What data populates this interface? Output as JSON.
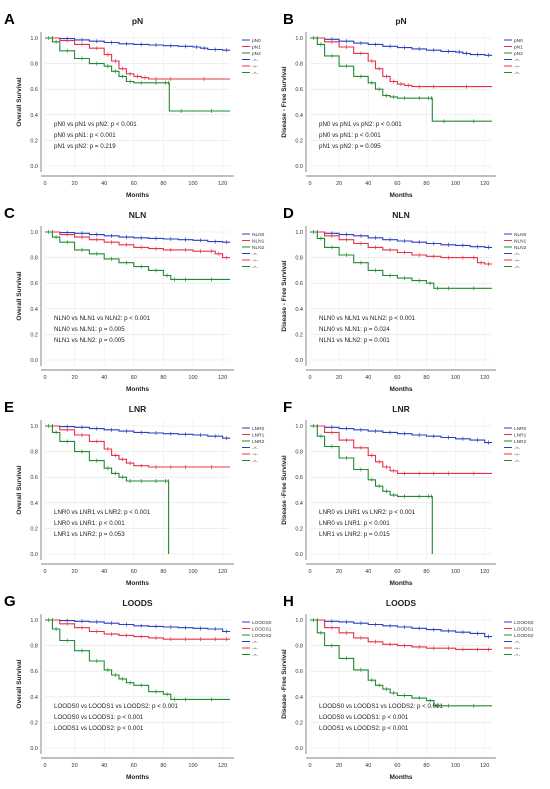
{
  "figure": {
    "xlabel": "Months",
    "x_ticks": [
      0,
      20,
      40,
      60,
      80,
      100,
      120
    ],
    "y_ticks": [
      "0.0",
      "0.2",
      "0.4",
      "0.6",
      "0.8",
      "1.0"
    ],
    "colors": [
      "#2b3fbf",
      "#e8304a",
      "#1e8c2e"
    ]
  },
  "chart_data": [
    {
      "panel": "A",
      "type": "line",
      "title": "pN",
      "ylabel": "Overall Survival",
      "xlim": [
        0,
        125
      ],
      "ylim": [
        0,
        1.0
      ],
      "legend": [
        "pN0",
        "pN1",
        "pN2",
        "-+-",
        "-+-",
        "-+-"
      ],
      "annotations": [
        "pN0 vs pN1 vs pN2: p < 0.001",
        "pN0 vs pN1: p < 0.001",
        "pN1 vs pN2: p = 0.219"
      ],
      "series": [
        {
          "x": [
            0,
            10,
            20,
            30,
            40,
            50,
            60,
            70,
            80,
            90,
            100,
            105,
            110,
            120,
            125
          ],
          "y": [
            1.0,
            0.995,
            0.985,
            0.975,
            0.965,
            0.955,
            0.95,
            0.945,
            0.94,
            0.935,
            0.93,
            0.92,
            0.91,
            0.905,
            0.905
          ]
        },
        {
          "x": [
            0,
            10,
            20,
            30,
            40,
            45,
            50,
            55,
            60,
            65,
            70,
            80,
            90,
            125
          ],
          "y": [
            1.0,
            0.98,
            0.95,
            0.92,
            0.87,
            0.82,
            0.76,
            0.72,
            0.7,
            0.69,
            0.68,
            0.68,
            0.68,
            0.68
          ]
        },
        {
          "x": [
            0,
            5,
            10,
            20,
            30,
            40,
            45,
            50,
            55,
            60,
            70,
            80,
            83,
            84,
            100,
            125
          ],
          "y": [
            1.0,
            0.97,
            0.9,
            0.84,
            0.8,
            0.78,
            0.74,
            0.7,
            0.66,
            0.65,
            0.65,
            0.65,
            0.65,
            0.43,
            0.43,
            0.43
          ]
        }
      ]
    },
    {
      "panel": "B",
      "type": "line",
      "title": "pN",
      "ylabel": "Disease - Free Survival",
      "xlim": [
        0,
        125
      ],
      "ylim": [
        0,
        1.0
      ],
      "legend": [
        "pN0",
        "pN1",
        "pN2",
        "-+-",
        "-+-",
        "-+-"
      ],
      "annotations": [
        "pN0 vs pN1 vs pN2: p < 0.001",
        "pN0 vs pN1: p < 0.001",
        "pN1 vs pN2: p = 0.095"
      ],
      "series": [
        {
          "x": [
            0,
            10,
            20,
            30,
            40,
            50,
            60,
            70,
            80,
            90,
            100,
            105,
            110,
            120,
            125
          ],
          "y": [
            1.0,
            0.99,
            0.975,
            0.96,
            0.95,
            0.935,
            0.925,
            0.915,
            0.905,
            0.895,
            0.89,
            0.88,
            0.87,
            0.865,
            0.865
          ]
        },
        {
          "x": [
            0,
            10,
            20,
            30,
            40,
            45,
            50,
            55,
            60,
            65,
            70,
            80,
            90,
            125
          ],
          "y": [
            1.0,
            0.97,
            0.93,
            0.88,
            0.82,
            0.76,
            0.7,
            0.66,
            0.64,
            0.63,
            0.62,
            0.62,
            0.62,
            0.62
          ]
        },
        {
          "x": [
            0,
            5,
            10,
            20,
            30,
            40,
            45,
            50,
            55,
            60,
            70,
            80,
            83,
            84,
            100,
            125
          ],
          "y": [
            1.0,
            0.95,
            0.86,
            0.78,
            0.7,
            0.65,
            0.6,
            0.55,
            0.54,
            0.53,
            0.53,
            0.53,
            0.53,
            0.35,
            0.35,
            0.35
          ]
        }
      ]
    },
    {
      "panel": "C",
      "type": "line",
      "title": "NLN",
      "ylabel": "Overall Survival",
      "xlim": [
        0,
        125
      ],
      "ylim": [
        0,
        1.0
      ],
      "legend": [
        "NLN0",
        "NLN1",
        "NLN2",
        "-+-",
        "-+-",
        "-+-"
      ],
      "annotations": [
        "NLN0 vs NLN1 vs NLN2: p < 0.001",
        "NLN0 vs NLN1: p = 0.005",
        "NLN1 vs NLN2: p = 0.005"
      ],
      "series": [
        {
          "x": [
            0,
            10,
            20,
            30,
            40,
            50,
            60,
            70,
            80,
            90,
            100,
            110,
            120,
            125
          ],
          "y": [
            1.0,
            0.995,
            0.99,
            0.98,
            0.97,
            0.96,
            0.955,
            0.95,
            0.945,
            0.94,
            0.935,
            0.925,
            0.92,
            0.92
          ]
        },
        {
          "x": [
            0,
            10,
            20,
            30,
            40,
            50,
            60,
            70,
            80,
            90,
            100,
            110,
            115,
            120,
            125
          ],
          "y": [
            1.0,
            0.98,
            0.96,
            0.94,
            0.92,
            0.9,
            0.88,
            0.87,
            0.86,
            0.86,
            0.85,
            0.85,
            0.83,
            0.8,
            0.8
          ]
        },
        {
          "x": [
            0,
            5,
            10,
            20,
            30,
            40,
            50,
            60,
            70,
            80,
            85,
            90,
            100,
            125
          ],
          "y": [
            1.0,
            0.96,
            0.92,
            0.86,
            0.83,
            0.79,
            0.76,
            0.73,
            0.7,
            0.66,
            0.63,
            0.63,
            0.63,
            0.63
          ]
        }
      ]
    },
    {
      "panel": "D",
      "type": "line",
      "title": "NLN",
      "ylabel": "Disease - Free Survival",
      "xlim": [
        0,
        125
      ],
      "ylim": [
        0,
        1.0
      ],
      "legend": [
        "NLN0",
        "NLN1",
        "NLN2",
        "-+-",
        "-+-",
        "-+-"
      ],
      "annotations": [
        "NLN0 vs NLN1 vs NLN2: p < 0.001",
        "NLN0 vs NLN1: p = 0.024",
        "NLN1 vs NLN2: p = 0.001"
      ],
      "series": [
        {
          "x": [
            0,
            10,
            20,
            30,
            40,
            50,
            60,
            70,
            80,
            90,
            100,
            110,
            120,
            125
          ],
          "y": [
            1.0,
            0.99,
            0.98,
            0.97,
            0.955,
            0.94,
            0.93,
            0.92,
            0.91,
            0.9,
            0.895,
            0.885,
            0.88,
            0.88
          ]
        },
        {
          "x": [
            0,
            10,
            20,
            30,
            40,
            50,
            60,
            70,
            80,
            90,
            100,
            110,
            115,
            120,
            125
          ],
          "y": [
            1.0,
            0.97,
            0.94,
            0.91,
            0.88,
            0.86,
            0.84,
            0.82,
            0.81,
            0.8,
            0.8,
            0.8,
            0.76,
            0.75,
            0.75
          ]
        },
        {
          "x": [
            0,
            5,
            10,
            20,
            30,
            40,
            50,
            60,
            70,
            80,
            85,
            90,
            100,
            125
          ],
          "y": [
            1.0,
            0.95,
            0.88,
            0.82,
            0.76,
            0.7,
            0.66,
            0.64,
            0.62,
            0.6,
            0.56,
            0.56,
            0.56,
            0.56
          ]
        }
      ]
    },
    {
      "panel": "E",
      "type": "line",
      "title": "LNR",
      "ylabel": "Overall Survival",
      "xlim": [
        0,
        125
      ],
      "ylim": [
        0,
        1.0
      ],
      "legend": [
        "LNR0",
        "LNR1",
        "LNR2",
        "-+-",
        "-+-",
        "-+-"
      ],
      "annotations": [
        "LNR0 vs LNR1 vs LNR2: p < 0.001",
        "LNR0 vs LNR1: p < 0.001",
        "LNR1 vs LNR2: p = 0.053"
      ],
      "series": [
        {
          "x": [
            0,
            10,
            20,
            30,
            40,
            50,
            60,
            70,
            80,
            90,
            100,
            110,
            120,
            125
          ],
          "y": [
            1.0,
            0.995,
            0.99,
            0.98,
            0.97,
            0.96,
            0.95,
            0.945,
            0.94,
            0.935,
            0.93,
            0.92,
            0.905,
            0.905
          ]
        },
        {
          "x": [
            0,
            10,
            20,
            30,
            40,
            45,
            50,
            55,
            60,
            70,
            80,
            90,
            100,
            125
          ],
          "y": [
            1.0,
            0.97,
            0.93,
            0.88,
            0.82,
            0.77,
            0.74,
            0.71,
            0.69,
            0.68,
            0.68,
            0.68,
            0.68,
            0.68
          ]
        },
        {
          "x": [
            0,
            5,
            10,
            20,
            30,
            40,
            45,
            50,
            55,
            60,
            70,
            80,
            83,
            83.5
          ],
          "y": [
            1.0,
            0.95,
            0.88,
            0.8,
            0.73,
            0.67,
            0.63,
            0.6,
            0.57,
            0.57,
            0.57,
            0.57,
            0.57,
            0.0
          ]
        }
      ]
    },
    {
      "panel": "F",
      "type": "line",
      "title": "LNR",
      "ylabel": "Disease -Free Survival",
      "xlim": [
        0,
        125
      ],
      "ylim": [
        0,
        1.0
      ],
      "legend": [
        "LNR0",
        "LNR1",
        "LNR2",
        "-+-",
        "-+-",
        "-+-"
      ],
      "annotations": [
        "LNR0 vs LNR1 vs LNR2: p < 0.001",
        "LNR0 vs LNR1: p < 0.001",
        "LNR1 vs LNR2: p = 0.015"
      ],
      "series": [
        {
          "x": [
            0,
            10,
            20,
            30,
            40,
            50,
            60,
            70,
            80,
            90,
            100,
            110,
            120,
            125
          ],
          "y": [
            1.0,
            0.99,
            0.98,
            0.97,
            0.96,
            0.95,
            0.94,
            0.93,
            0.92,
            0.91,
            0.9,
            0.89,
            0.87,
            0.87
          ]
        },
        {
          "x": [
            0,
            10,
            20,
            30,
            40,
            45,
            50,
            55,
            60,
            70,
            80,
            90,
            100,
            125
          ],
          "y": [
            1.0,
            0.95,
            0.89,
            0.83,
            0.77,
            0.72,
            0.68,
            0.65,
            0.63,
            0.63,
            0.63,
            0.63,
            0.63,
            0.63
          ]
        },
        {
          "x": [
            0,
            5,
            10,
            20,
            30,
            40,
            45,
            50,
            55,
            60,
            70,
            80,
            83,
            84
          ],
          "y": [
            1.0,
            0.92,
            0.84,
            0.75,
            0.66,
            0.58,
            0.53,
            0.49,
            0.46,
            0.45,
            0.45,
            0.45,
            0.45,
            0.0
          ]
        }
      ]
    },
    {
      "panel": "G",
      "type": "line",
      "title": "LOODS",
      "ylabel": "Overall Survival",
      "xlim": [
        0,
        125
      ],
      "ylim": [
        0,
        1.0
      ],
      "legend": [
        "LOODS0",
        "LOODS1",
        "LOODS2",
        "-+-",
        "-+-",
        "-+-"
      ],
      "annotations": [
        "LOODS0 vs LOODS1 vs LOODS2: p < 0.001",
        "LOODS0 vs LOODS1: p < 0.001",
        "LOODS1 vs LOODS2: p < 0.001"
      ],
      "series": [
        {
          "x": [
            0,
            10,
            20,
            30,
            40,
            50,
            60,
            70,
            80,
            90,
            100,
            110,
            120,
            125
          ],
          "y": [
            1.0,
            0.995,
            0.99,
            0.985,
            0.975,
            0.965,
            0.955,
            0.95,
            0.945,
            0.94,
            0.935,
            0.93,
            0.91,
            0.91
          ]
        },
        {
          "x": [
            0,
            10,
            20,
            30,
            40,
            50,
            60,
            70,
            80,
            90,
            100,
            110,
            120,
            125
          ],
          "y": [
            1.0,
            0.97,
            0.94,
            0.91,
            0.89,
            0.88,
            0.87,
            0.86,
            0.85,
            0.85,
            0.85,
            0.85,
            0.85,
            0.85
          ]
        },
        {
          "x": [
            0,
            5,
            10,
            20,
            30,
            40,
            45,
            50,
            55,
            60,
            70,
            80,
            85,
            90,
            100,
            125
          ],
          "y": [
            1.0,
            0.93,
            0.84,
            0.76,
            0.68,
            0.61,
            0.57,
            0.54,
            0.51,
            0.49,
            0.44,
            0.42,
            0.38,
            0.38,
            0.38,
            0.38
          ]
        }
      ]
    },
    {
      "panel": "H",
      "type": "line",
      "title": "LOODS",
      "ylabel": "Disease -Free Survival",
      "xlim": [
        0,
        125
      ],
      "ylim": [
        0,
        1.0
      ],
      "legend": [
        "LOODS0",
        "LOODS1",
        "LOODS2",
        "-+-",
        "-+-",
        "-+-"
      ],
      "annotations": [
        "LOODS0 vs LOODS1 vs LOODS2: p < 0.001",
        "LOODS0 vs LOODS1: p < 0.001",
        "LOODS1 vs LOODS2: p < 0.001"
      ],
      "series": [
        {
          "x": [
            0,
            10,
            20,
            30,
            40,
            50,
            60,
            70,
            80,
            90,
            100,
            110,
            120,
            125
          ],
          "y": [
            1.0,
            0.99,
            0.985,
            0.975,
            0.965,
            0.955,
            0.945,
            0.935,
            0.925,
            0.915,
            0.905,
            0.895,
            0.87,
            0.87
          ]
        },
        {
          "x": [
            0,
            10,
            20,
            30,
            40,
            50,
            60,
            70,
            80,
            90,
            100,
            110,
            120,
            125
          ],
          "y": [
            1.0,
            0.94,
            0.9,
            0.86,
            0.83,
            0.81,
            0.8,
            0.79,
            0.78,
            0.78,
            0.77,
            0.77,
            0.77,
            0.77
          ]
        },
        {
          "x": [
            0,
            5,
            10,
            20,
            30,
            40,
            45,
            50,
            55,
            60,
            70,
            80,
            85,
            90,
            100,
            125
          ],
          "y": [
            1.0,
            0.9,
            0.8,
            0.7,
            0.61,
            0.53,
            0.49,
            0.46,
            0.43,
            0.41,
            0.39,
            0.37,
            0.33,
            0.33,
            0.33,
            0.33
          ]
        }
      ]
    }
  ]
}
